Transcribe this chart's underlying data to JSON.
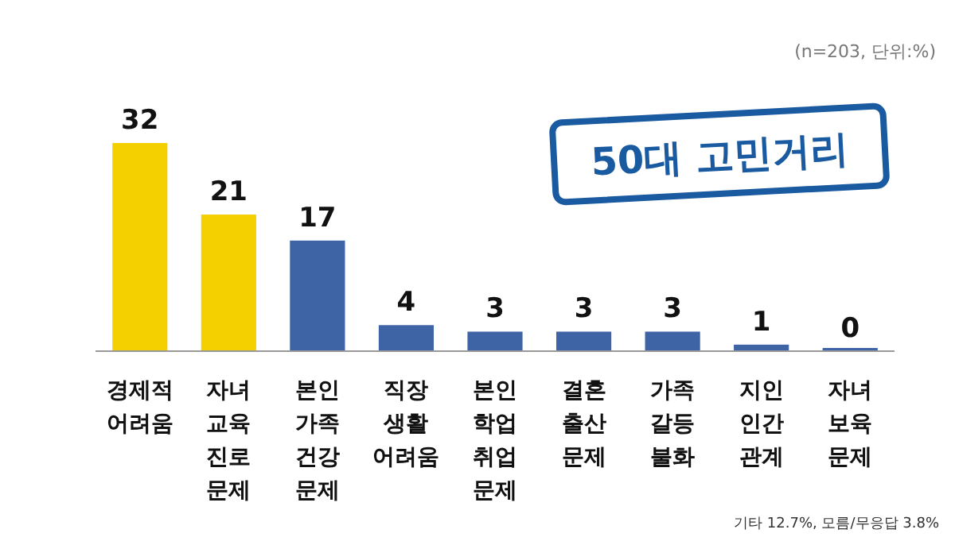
{
  "chart_data": {
    "type": "bar",
    "categories": [
      "경제적 어려움",
      "자녀 교육 진로 문제",
      "본인 가족 건강 문제",
      "직장 생활 어려움",
      "본인 학업 취업 문제",
      "결혼 출산 문제",
      "가족 갈등 불화",
      "지인 인간 관계",
      "자녀 보육 문제"
    ],
    "values": [
      32,
      21,
      17,
      4,
      3,
      3,
      3,
      1,
      0
    ],
    "colors": [
      "#f5d000",
      "#f5d000",
      "#3e64a6",
      "#3e64a6",
      "#3e64a6",
      "#3e64a6",
      "#3e64a6",
      "#3e64a6",
      "#3e64a6"
    ],
    "data_labels": true,
    "annotations": [
      "(n=203, 단위:%)",
      "50대 고민거리",
      "기타 12.7%, 모름/무응답 3.8%"
    ]
  }
}
